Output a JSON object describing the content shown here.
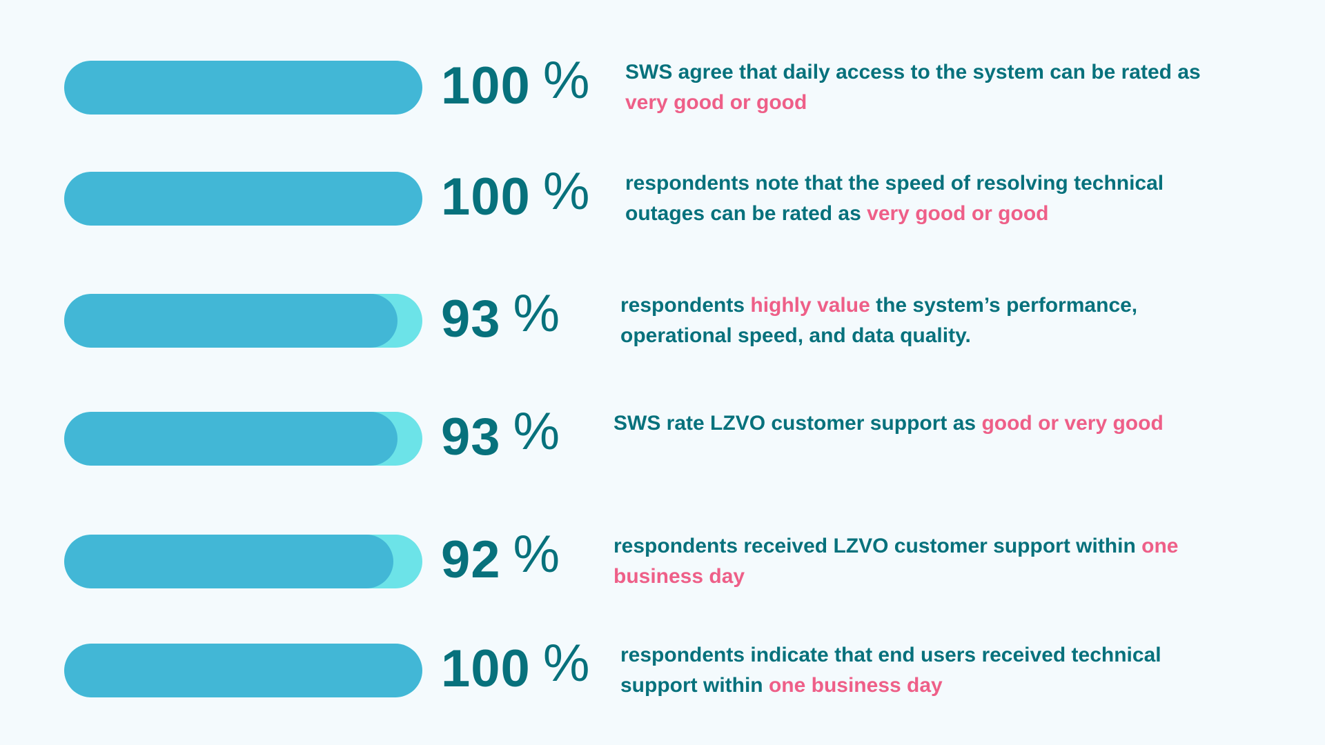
{
  "colors": {
    "bar": "#42B7D6",
    "track": "#6CE3E8",
    "text": "#07717C",
    "highlight": "#EE5F88",
    "background": "#F4FAFD"
  },
  "rows": [
    {
      "value": 100,
      "value_label": "100",
      "percent_sign": "%",
      "text_before": "SWS agree that daily access to the system can be rated as ",
      "highlight": "very good or good",
      "text_after": ""
    },
    {
      "value": 100,
      "value_label": "100",
      "percent_sign": "%",
      "text_before": "respondents note that the speed of resolving technical outages can be rated as ",
      "highlight": "very good or good",
      "text_after": ""
    },
    {
      "value": 93,
      "value_label": "93",
      "percent_sign": "%",
      "text_before": "respondents ",
      "highlight": "highly value",
      "text_after": " the system’s performance, operational speed, and data quality."
    },
    {
      "value": 93,
      "value_label": "93",
      "percent_sign": "%",
      "text_before": "SWS rate LZVO customer support as ",
      "highlight": "good or very good",
      "text_after": ""
    },
    {
      "value": 92,
      "value_label": "92",
      "percent_sign": "%",
      "text_before": "respondents received LZVO customer support within ",
      "highlight": "one business day",
      "text_after": ""
    },
    {
      "value": 100,
      "value_label": "100",
      "percent_sign": "%",
      "text_before": "respondents indicate that end users received technical support within ",
      "highlight": "one business day",
      "text_after": ""
    }
  ]
}
